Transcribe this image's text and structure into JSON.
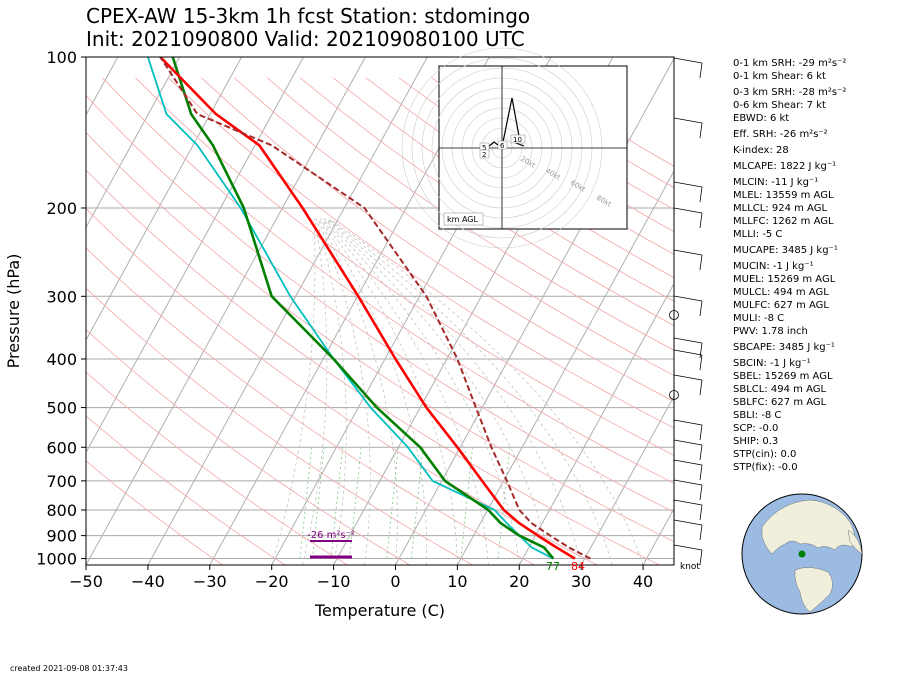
{
  "title": {
    "line1": "CPEX-AW 15-3km  1h fcst  Station: stdomingo",
    "line2": "Init: 2021090800  Valid: 202109080100 UTC"
  },
  "indices": [
    "0-1 km SRH: -29 m²s⁻²",
    "0-1 km Shear: 6 kt",
    "0-3 km SRH: -28 m²s⁻²",
    "0-6 km Shear: 7 kt",
    "EBWD: 6 kt",
    "Eff. SRH: -26 m²s⁻²",
    "K-index: 28",
    "MLCAPE: 1822 J kg⁻¹",
    "MLCIN: -11 J kg⁻¹",
    "MLEL: 13559 m AGL",
    "MLLCL: 924 m AGL",
    "MLLFC: 1262 m AGL",
    "MLLI: -5 C",
    "MUCAPE: 3485 J kg⁻¹",
    "MUCIN: -1 J kg⁻¹",
    "MUEL: 15269 m AGL",
    "MULCL: 494 m AGL",
    "MULFC: 627 m AGL",
    "MULI: -8 C",
    "PWV: 1.78 inch",
    "SBCAPE: 3485 J kg⁻¹",
    "SBCIN: -1 J kg⁻¹",
    "SBEL: 15269 m AGL",
    "SBLCL: 494 m AGL",
    "SBLFC: 627 m AGL",
    "SBLI: -8 C",
    "SCP: -0.0",
    "SHIP: 0.3",
    "STP(cin): 0.0",
    "STP(fix): -0.0"
  ],
  "created": "created 2021-09-08 01:37:43",
  "chart_data": {
    "type": "line",
    "xlabel": "Temperature (C)",
    "ylabel": "Pressure (hPa)",
    "xlim": [
      -50,
      45
    ],
    "ylim": [
      1030,
      100
    ],
    "y_scale": "log",
    "grid": true,
    "x_ticks": [
      -50,
      -40,
      -30,
      -20,
      -10,
      0,
      10,
      20,
      30,
      40
    ],
    "y_ticks": [
      100,
      200,
      300,
      400,
      500,
      600,
      700,
      800,
      900,
      1000
    ],
    "surface_temp_label": "84",
    "surface_dewpoint_label": "77",
    "srh_label": "-26 m²s⁻²",
    "wind_unit_label": "knot",
    "colors": {
      "temperature": "#ff0000",
      "dewpoint": "#008000",
      "wetbulb": "#00bfbf",
      "parcel": "#a52a2a",
      "srh": "#800080"
    },
    "series": [
      {
        "skewed_x": [
          29,
          26,
          23,
          20,
          17.5,
          14,
          10,
          5,
          0,
          -6,
          -15,
          -22,
          -29,
          -38
        ],
        "pressure": [
          1000,
          950,
          900,
          850,
          800,
          700,
          600,
          500,
          400,
          300,
          200,
          150,
          130,
          100
        ]
      },
      {
        "skewed_x": [
          25.5,
          24,
          20,
          17,
          15,
          8,
          4,
          -3,
          -10,
          -20,
          -24.5,
          -29.5,
          -33,
          -36
        ],
        "pressure": [
          1000,
          950,
          900,
          850,
          800,
          700,
          600,
          500,
          400,
          300,
          200,
          150,
          130,
          100
        ]
      },
      {
        "skewed_x": [
          25.5,
          22,
          20,
          18,
          16,
          6,
          2,
          -4,
          -10,
          -17,
          -25,
          -32,
          -37,
          -40
        ],
        "pressure": [
          1000,
          950,
          900,
          850,
          800,
          700,
          600,
          500,
          400,
          300,
          200,
          150,
          130,
          100
        ]
      },
      {
        "skewed_x": [
          31.5,
          28,
          25,
          22,
          20,
          18,
          15.5,
          13,
          10,
          5,
          -5,
          -20,
          -32,
          -38
        ],
        "pressure": [
          1000,
          950,
          900,
          850,
          800,
          700,
          600,
          500,
          400,
          300,
          200,
          150,
          130,
          100
        ]
      }
    ],
    "hodograph": {
      "ring_labels": [
        "20kt",
        "40kt",
        "60kt",
        "80kt"
      ],
      "height_labels": [
        "5",
        "2",
        "6",
        "10"
      ],
      "unit_label": "km AGL"
    }
  }
}
